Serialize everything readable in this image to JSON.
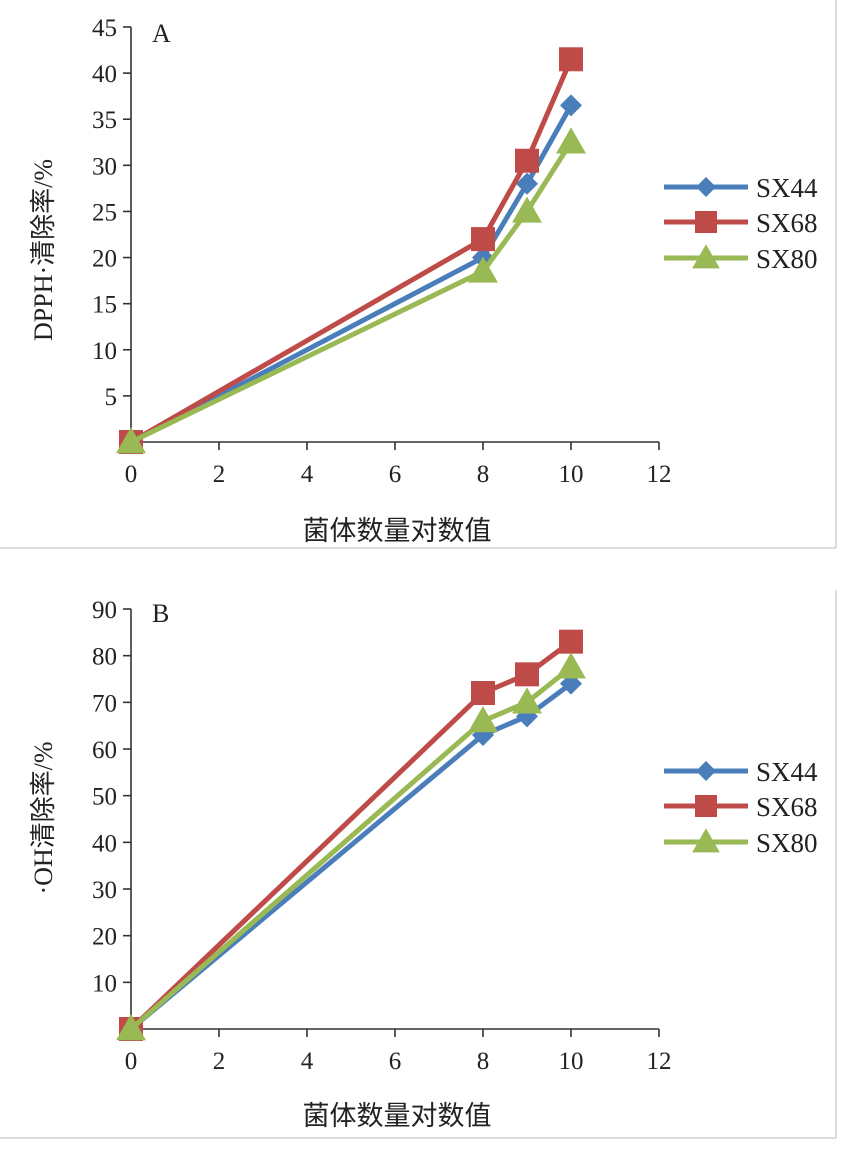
{
  "chart_data": [
    {
      "type": "line",
      "panel_label": "A",
      "xlabel": "菌体数量对数值",
      "ylabel": "DPPH·清除率/%",
      "x": [
        0,
        8,
        9,
        10
      ],
      "xlim": [
        0,
        12
      ],
      "xticks": [
        0,
        2,
        4,
        6,
        8,
        10,
        12
      ],
      "ylim": [
        0,
        45
      ],
      "yticks": [
        5,
        10,
        15,
        20,
        25,
        30,
        35,
        40,
        45
      ],
      "grid": false,
      "legend_position": "right",
      "series": [
        {
          "name": "SX44",
          "marker": "diamond",
          "color": "#4a7ebb",
          "values": [
            0,
            20,
            28,
            36.5
          ]
        },
        {
          "name": "SX68",
          "marker": "square",
          "color": "#be4b48",
          "values": [
            0,
            22,
            30.5,
            41.5
          ]
        },
        {
          "name": "SX80",
          "marker": "triangle",
          "color": "#98b954",
          "values": [
            0,
            18.5,
            25,
            32.5
          ]
        }
      ]
    },
    {
      "type": "line",
      "panel_label": "B",
      "xlabel": "菌体数量对数值",
      "ylabel": "·OH清除率/%",
      "x": [
        0,
        8,
        9,
        10
      ],
      "xlim": [
        0,
        12
      ],
      "xticks": [
        0,
        2,
        4,
        6,
        8,
        10,
        12
      ],
      "ylim": [
        0,
        90
      ],
      "yticks": [
        10,
        20,
        30,
        40,
        50,
        60,
        70,
        80,
        90
      ],
      "grid": false,
      "legend_position": "right",
      "series": [
        {
          "name": "SX44",
          "marker": "diamond",
          "color": "#4a7ebb",
          "values": [
            0,
            63,
            67,
            74
          ]
        },
        {
          "name": "SX68",
          "marker": "square",
          "color": "#be4b48",
          "values": [
            0,
            72,
            76,
            83
          ]
        },
        {
          "name": "SX80",
          "marker": "triangle",
          "color": "#98b954",
          "values": [
            0,
            66,
            70,
            77.5
          ]
        }
      ]
    }
  ]
}
